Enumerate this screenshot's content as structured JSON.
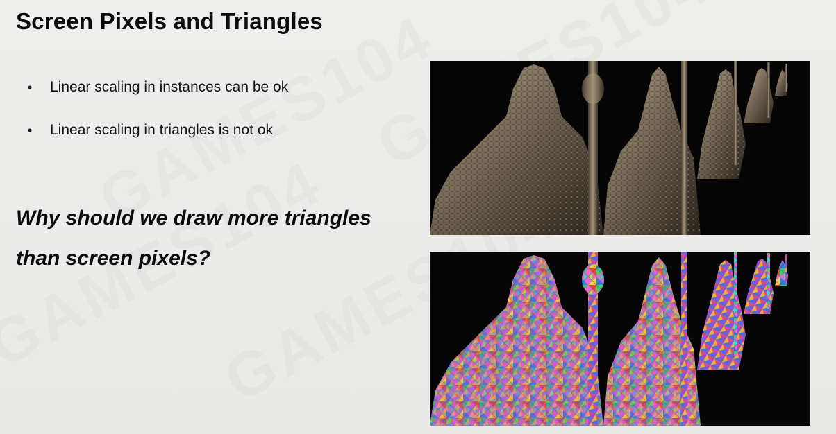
{
  "slide": {
    "title": "Screen Pixels and Triangles",
    "bullets": [
      "Linear scaling in instances can be ok",
      "Linear scaling in triangles is not ok"
    ],
    "bullet_glyph": "•",
    "question_line1": "Why should we draw more triangles",
    "question_line2": "than screen pixels?",
    "watermark_text": "GAMES104"
  },
  "figures": {
    "top": {
      "description_icon": "statue-render-image"
    },
    "bottom": {
      "description_icon": "triangle-visualization-image"
    }
  },
  "colors": {
    "background": "#ebebe9",
    "text": "#0c0c0c",
    "figure_bg": "#050505"
  }
}
